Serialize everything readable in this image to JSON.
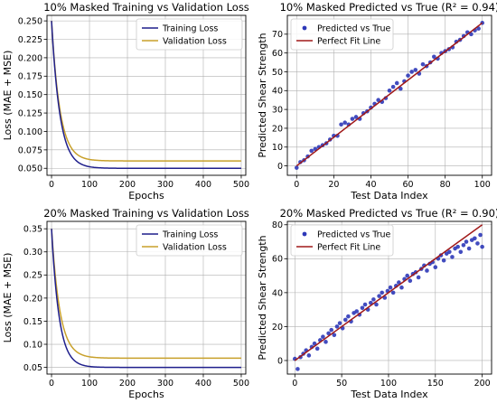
{
  "colors": {
    "training": "#1f1f8c",
    "validation": "#c8a02a",
    "scatter": "#2d38b8",
    "fit": "#a01818"
  },
  "chart_data": [
    {
      "type": "line",
      "title": "10% Masked Training vs Validation Loss",
      "xlabel": "Epochs",
      "ylabel": "Loss (MAE + MSE)",
      "xlim": [
        -12,
        512
      ],
      "ylim": [
        0.0405,
        0.2575
      ],
      "xticks": [
        0,
        100,
        200,
        300,
        400,
        500
      ],
      "yticks": [
        0.05,
        0.075,
        0.1,
        0.125,
        0.15,
        0.175,
        0.2,
        0.225,
        0.25
      ],
      "ytick_labels": [
        "0.050",
        "0.075",
        "0.100",
        "0.125",
        "0.150",
        "0.175",
        "0.200",
        "0.225",
        "0.250"
      ],
      "grid": true,
      "legend": "top-right",
      "series": [
        {
          "name": "Training Loss",
          "start": 0.25,
          "plateau": 0.05,
          "decay": 22,
          "x_end": 500
        },
        {
          "name": "Validation Loss",
          "start": 0.25,
          "plateau": 0.06,
          "decay": 22,
          "x_end": 500
        }
      ]
    },
    {
      "type": "scatter",
      "title": "10% Masked Predicted vs True (R² = 0.94)",
      "xlabel": "Test Data Index",
      "ylabel": "Predicted Shear Strength",
      "xlim": [
        -5,
        105
      ],
      "ylim": [
        -5,
        80
      ],
      "xticks": [
        0,
        20,
        40,
        60,
        80,
        100
      ],
      "yticks": [
        0,
        10,
        20,
        30,
        40,
        50,
        60,
        70
      ],
      "grid": true,
      "legend": "top-left",
      "series": [
        {
          "name": "Predicted vs True",
          "x": [
            0,
            2,
            4,
            6,
            8,
            10,
            12,
            14,
            16,
            18,
            20,
            22,
            24,
            26,
            28,
            30,
            32,
            34,
            36,
            38,
            40,
            42,
            44,
            46,
            48,
            50,
            52,
            54,
            56,
            58,
            60,
            62,
            64,
            66,
            68,
            70,
            72,
            74,
            76,
            78,
            80,
            82,
            84,
            86,
            88,
            90,
            92,
            94,
            96,
            98,
            100
          ],
          "y": [
            -1,
            2,
            3,
            5,
            8,
            9,
            10,
            11,
            12,
            14,
            16,
            16,
            22,
            23,
            22,
            25,
            26,
            25,
            28,
            29,
            31,
            33,
            35,
            34,
            36,
            40,
            42,
            44,
            41,
            45,
            48,
            50,
            51,
            49,
            54,
            53,
            55,
            58,
            57,
            60,
            61,
            62,
            63,
            66,
            67,
            69,
            71,
            70,
            72,
            73,
            76
          ]
        },
        {
          "name": "Perfect Fit Line",
          "x": [
            0,
            100
          ],
          "y": [
            0,
            76
          ]
        }
      ]
    },
    {
      "type": "line",
      "title": "20% Masked Training vs Validation Loss",
      "xlabel": "Epochs",
      "ylabel": "Loss (MAE + MSE)",
      "xlim": [
        -12,
        512
      ],
      "ylim": [
        0.0355,
        0.366
      ],
      "xticks": [
        0,
        100,
        200,
        300,
        400,
        500
      ],
      "yticks": [
        0.05,
        0.1,
        0.15,
        0.2,
        0.25,
        0.3,
        0.35
      ],
      "ytick_labels": [
        "0.05",
        "0.10",
        "0.15",
        "0.20",
        "0.25",
        "0.30",
        "0.35"
      ],
      "grid": true,
      "legend": "top-right",
      "series": [
        {
          "name": "Training Loss",
          "start": 0.35,
          "plateau": 0.05,
          "decay": 20,
          "x_end": 500
        },
        {
          "name": "Validation Loss",
          "start": 0.35,
          "plateau": 0.07,
          "decay": 22,
          "x_end": 500
        }
      ]
    },
    {
      "type": "scatter",
      "title": "20% Masked Predicted vs True (R² = 0.90)",
      "xlabel": "Test Data Index",
      "ylabel": "Predicted Shear Strength",
      "xlim": [
        -8,
        210
      ],
      "ylim": [
        -8,
        82
      ],
      "xticks": [
        0,
        50,
        100,
        150,
        200
      ],
      "yticks": [
        0,
        20,
        40,
        60,
        80
      ],
      "grid": true,
      "legend": "top-left",
      "series": [
        {
          "name": "Predicted vs True",
          "x": [
            0,
            3,
            6,
            9,
            12,
            15,
            18,
            21,
            24,
            27,
            30,
            33,
            36,
            39,
            42,
            45,
            48,
            51,
            54,
            57,
            60,
            63,
            66,
            69,
            72,
            75,
            78,
            81,
            84,
            87,
            90,
            93,
            96,
            99,
            102,
            105,
            108,
            111,
            114,
            117,
            120,
            123,
            126,
            129,
            132,
            135,
            138,
            141,
            144,
            147,
            150,
            153,
            156,
            159,
            162,
            165,
            168,
            171,
            174,
            177,
            180,
            183,
            186,
            189,
            192,
            195,
            198,
            200
          ],
          "y": [
            1,
            -5,
            2,
            4,
            6,
            3,
            8,
            10,
            7,
            12,
            14,
            11,
            16,
            18,
            15,
            20,
            22,
            19,
            24,
            26,
            23,
            28,
            29,
            27,
            31,
            33,
            30,
            34,
            36,
            33,
            38,
            40,
            37,
            41,
            43,
            40,
            44,
            46,
            43,
            48,
            50,
            47,
            51,
            52,
            49,
            54,
            56,
            53,
            57,
            58,
            55,
            60,
            62,
            59,
            63,
            64,
            61,
            66,
            67,
            64,
            68,
            70,
            66,
            71,
            72,
            69,
            74,
            67
          ]
        },
        {
          "name": "Perfect Fit Line",
          "x": [
            0,
            200
          ],
          "y": [
            0,
            80
          ]
        }
      ]
    }
  ]
}
